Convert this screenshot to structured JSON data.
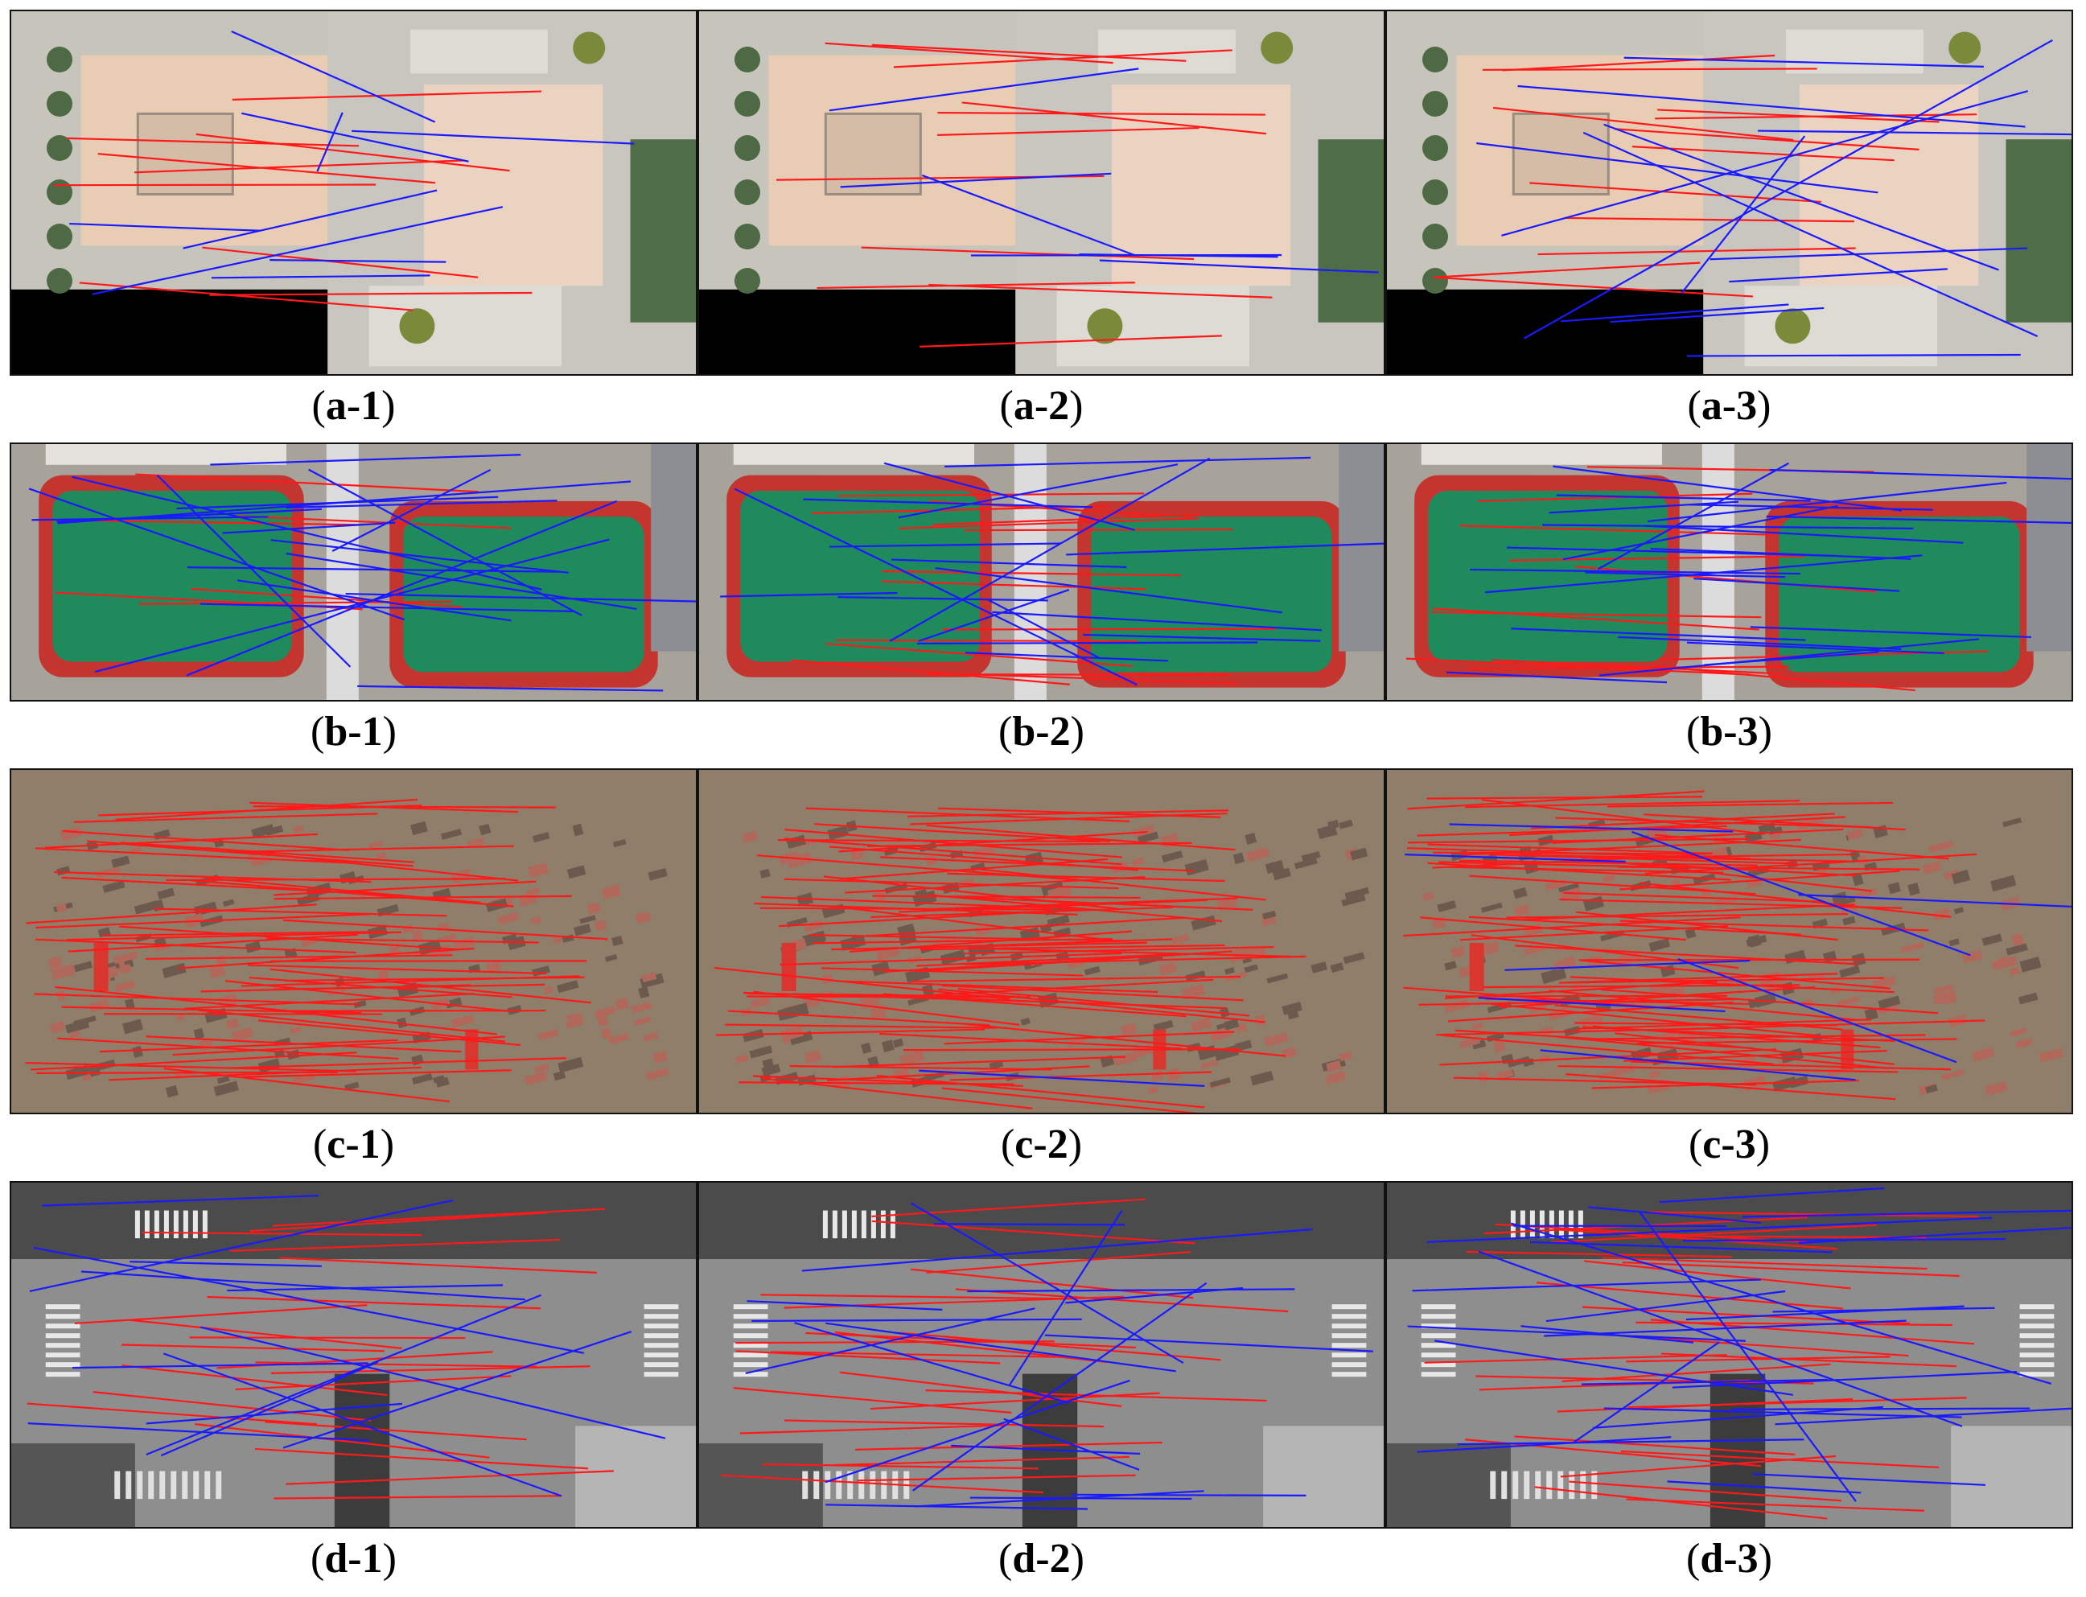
{
  "figure": {
    "rows": [
      {
        "id": "a",
        "scene": "plaza",
        "panels": [
          {
            "label": "a-1",
            "inliers": 9,
            "outliers": 9
          },
          {
            "label": "a-2",
            "inliers": 11,
            "outliers": 6
          },
          {
            "label": "a-3",
            "inliers": 12,
            "outliers": 14
          }
        ]
      },
      {
        "id": "b",
        "scene": "sports-courts",
        "panels": [
          {
            "label": "b-1",
            "inliers": 6,
            "outliers": 22
          },
          {
            "label": "b-2",
            "inliers": 14,
            "outliers": 18
          },
          {
            "label": "b-3",
            "inliers": 12,
            "outliers": 24
          }
        ]
      },
      {
        "id": "c",
        "scene": "village",
        "panels": [
          {
            "label": "c-1",
            "inliers": 60,
            "outliers": 0
          },
          {
            "label": "c-2",
            "inliers": 75,
            "outliers": 1
          },
          {
            "label": "c-3",
            "inliers": 80,
            "outliers": 8
          }
        ]
      },
      {
        "id": "d",
        "scene": "intersection",
        "panels": [
          {
            "label": "d-1",
            "inliers": 22,
            "outliers": 14
          },
          {
            "label": "d-2",
            "inliers": 24,
            "outliers": 20
          },
          {
            "label": "d-3",
            "inliers": 30,
            "outliers": 30
          }
        ]
      }
    ],
    "colors": {
      "inlier_line": "#ff1a1a",
      "outlier_line": "#1a1aff",
      "border": "#111111"
    }
  }
}
